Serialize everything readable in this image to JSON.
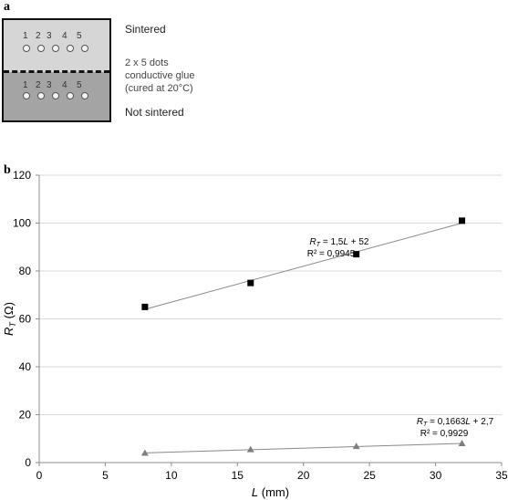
{
  "panel_a": {
    "label": "a",
    "dot_numbers": [
      "1",
      "2",
      "3",
      "4",
      "5"
    ],
    "sintered_label": "Sintered",
    "dots_description": [
      "2 x 5 dots",
      "conductive glue",
      "(cured at 20°C)"
    ],
    "not_sintered_label": "Not sintered",
    "colors": {
      "top_region": "#d6d6d6",
      "bottom_region": "#a4a4a4"
    }
  },
  "panel_b": {
    "label": "b"
  },
  "chart_data": {
    "type": "scatter",
    "xlabel_var": "L",
    "xlabel_unit": " (mm)",
    "ylabel_var": "R",
    "ylabel_sub": "T",
    "ylabel_unit": " (Ω)",
    "xlim": [
      0,
      35
    ],
    "ylim": [
      0,
      120
    ],
    "x_ticks": [
      0,
      5,
      10,
      15,
      20,
      25,
      30,
      35
    ],
    "y_ticks": [
      0,
      20,
      40,
      60,
      80,
      100,
      120
    ],
    "grid": true,
    "series": [
      {
        "marker": "square",
        "color": "#000000",
        "x": [
          8,
          16,
          24,
          32
        ],
        "y": [
          65,
          75,
          87,
          101
        ],
        "trend": {
          "slope": 1.5,
          "intercept": 52
        },
        "equation_lhs": "R",
        "equation_sub": "T",
        "equation_rhs": " = 1,5",
        "equation_var": "L",
        "equation_tail": " + 52",
        "r2": "R² = 0,9945"
      },
      {
        "marker": "triangle",
        "color": "#808080",
        "x": [
          8,
          16,
          24,
          32
        ],
        "y": [
          4,
          5.5,
          6.8,
          8
        ],
        "trend": {
          "slope": 0.1663,
          "intercept": 2.7
        },
        "equation_lhs": "R",
        "equation_sub": "T",
        "equation_rhs": " = 0,1663",
        "equation_var": "L",
        "equation_tail": " + 2,7",
        "r2": "R² = 0,9929"
      }
    ]
  }
}
